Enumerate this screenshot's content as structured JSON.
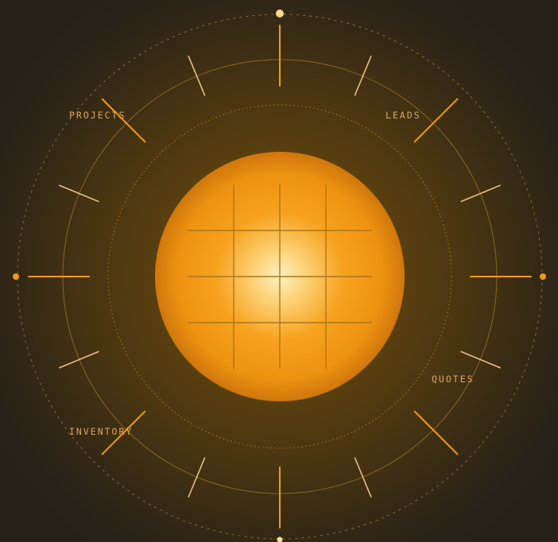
{
  "labels": {
    "projects": "PROJECTS",
    "leads": "LEADS",
    "quotes": "QUOTES",
    "inventory": "INVENTORY"
  },
  "colors": {
    "background": "#262019",
    "accent": "#f29c12",
    "pale": "#e8bd7c",
    "label": "#d8a85a",
    "sun_center": "#fff0c4",
    "sun_edge": "#cf770c"
  }
}
